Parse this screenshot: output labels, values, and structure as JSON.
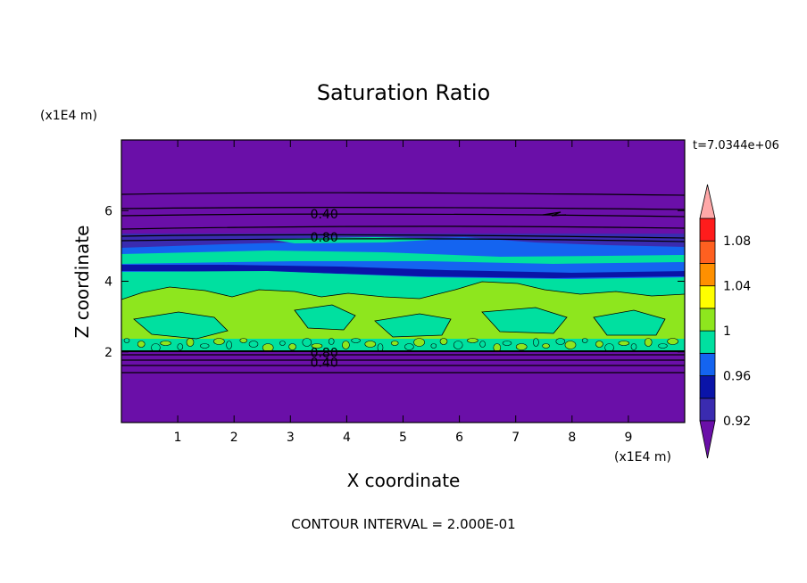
{
  "chart_data": {
    "type": "heatmap",
    "title": "Saturation Ratio",
    "xlabel": "X coordinate",
    "ylabel": "Z coordinate",
    "x_unit": "(x1E4 m)",
    "y_unit": "(x1E4 m)",
    "time_label": "t=7.0344e+06",
    "footer": "CONTOUR INTERVAL = 2.000E-01",
    "xlim": [
      0,
      10
    ],
    "ylim": [
      0,
      8
    ],
    "x_ticks": [
      1,
      2,
      3,
      4,
      5,
      6,
      7,
      8,
      9
    ],
    "y_ticks": [
      2,
      4,
      6
    ],
    "x_tick_labels": [
      "1",
      "2",
      "3",
      "4",
      "5",
      "6",
      "7",
      "8",
      "9"
    ],
    "y_tick_labels": [
      "2",
      "4",
      "6"
    ],
    "colorbar": {
      "levels": [
        0.92,
        0.94,
        0.96,
        0.98,
        1.0,
        1.02,
        1.04,
        1.06,
        1.08,
        1.1
      ],
      "colors": [
        "#6a0fa8",
        "#3a2bb0",
        "#0a14a8",
        "#1464f0",
        "#00e0a0",
        "#8ee61e",
        "#ffff00",
        "#ff9000",
        "#ff6020",
        "#ff1c1c",
        "#ffa8a8"
      ],
      "tick_labels": [
        "1.08",
        "1.04",
        "1",
        "0.96",
        "0.92"
      ],
      "tick_values": [
        1.08,
        1.04,
        1.0,
        0.96,
        0.92
      ]
    },
    "contour_labels": [
      {
        "text": "0.40",
        "x": 3.6,
        "z": 5.9
      },
      {
        "text": "0.80",
        "x": 3.6,
        "z": 5.25
      },
      {
        "text": "0.80",
        "x": 3.6,
        "z": 1.98
      },
      {
        "text": "0.40",
        "x": 3.6,
        "z": 1.7
      }
    ],
    "fields": [
      {
        "z_range": [
          0,
          2.02
        ],
        "level": "below 0.92",
        "color": "#6a0fa8"
      },
      {
        "z_range": [
          2.02,
          3.8
        ],
        "level": "1.00-1.02 with 0.98-1.00 patches",
        "color": "#8ee61e"
      },
      {
        "z_range": [
          3.8,
          4.3
        ],
        "level": "0.98-1.00",
        "color": "#00e0a0"
      },
      {
        "z_range": [
          4.3,
          5.1
        ],
        "level": "0.92-0.98 mixed layer",
        "color": "#1464f0"
      },
      {
        "z_range": [
          5.1,
          8
        ],
        "level": "below 0.92",
        "color": "#6a0fa8"
      }
    ]
  }
}
